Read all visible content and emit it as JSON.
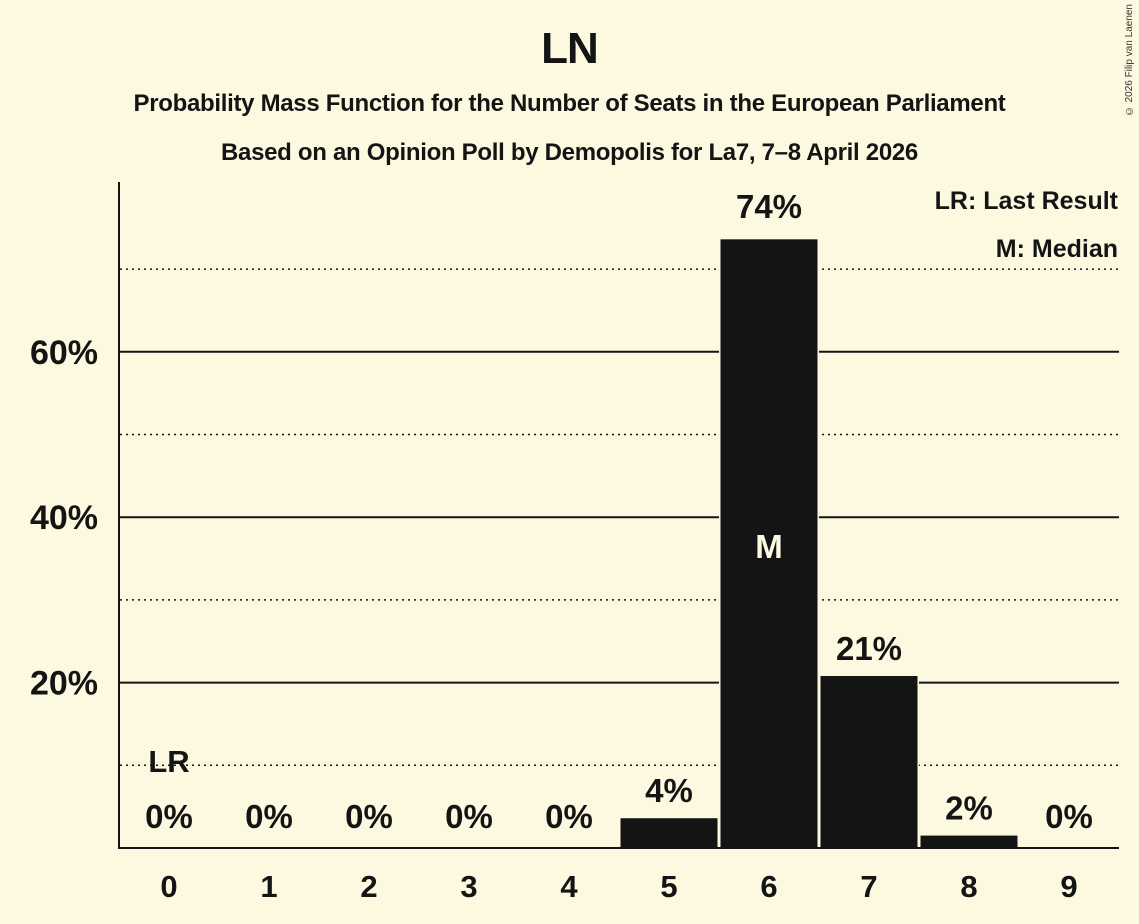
{
  "header": {
    "title": "LN",
    "subtitle": "Probability Mass Function for the Number of Seats in the European Parliament",
    "source": "Based on an Opinion Poll by Demopolis for La7, 7–8 April 2026",
    "copyright": "© 2026 Filip van Laenen"
  },
  "legend": {
    "last_result": "LR: Last Result",
    "median": "M: Median"
  },
  "colors": {
    "background": "#fdf9e1",
    "bar": "#141414",
    "text": "#141414",
    "median_label": "#fdf9e1"
  },
  "chart_data": {
    "type": "bar",
    "title": "LN",
    "subtitle": "Probability Mass Function for the Number of Seats in the European Parliament",
    "caption": "Based on an Opinion Poll by Demopolis for La7, 7–8 April 2026",
    "xlabel": "",
    "ylabel": "",
    "categories": [
      "0",
      "1",
      "2",
      "3",
      "4",
      "5",
      "6",
      "7",
      "8",
      "9"
    ],
    "values": [
      0,
      0,
      0,
      0,
      0,
      3.6,
      73.6,
      20.8,
      1.5,
      0
    ],
    "data_labels": [
      "0%",
      "0%",
      "0%",
      "0%",
      "0%",
      "4%",
      "74%",
      "21%",
      "2%",
      "0%"
    ],
    "ylim": [
      0,
      80
    ],
    "yticks": [
      20,
      40,
      60
    ],
    "ytick_labels": [
      "20%",
      "40%",
      "60%"
    ],
    "minor_gridlines": [
      10,
      30,
      50,
      70
    ],
    "grid": true,
    "annotations": [
      {
        "category": "0",
        "label": "LR",
        "meaning": "Last Result"
      },
      {
        "category": "6",
        "label": "M",
        "meaning": "Median"
      }
    ],
    "legend": [
      "LR: Last Result",
      "M: Median"
    ],
    "legend_position": "top-right"
  }
}
